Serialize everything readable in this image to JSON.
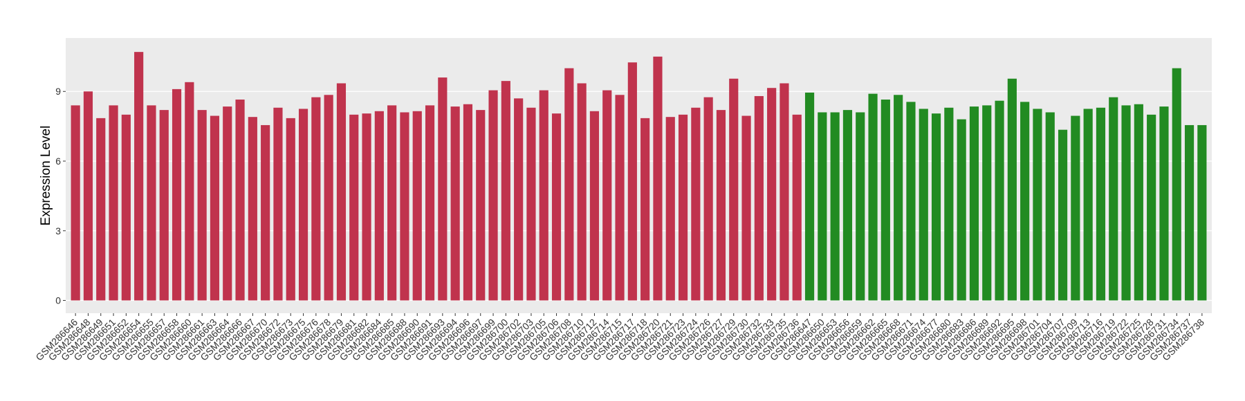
{
  "chart_data": {
    "type": "bar",
    "y_label": "Expression Level",
    "ylim": [
      -0.55,
      11.3
    ],
    "yticks": [
      0,
      3,
      6,
      9
    ],
    "grid": true,
    "series": [
      {
        "color": "#c0334d",
        "categories": [
          "GSM286646",
          "GSM286648",
          "GSM286649",
          "GSM286651",
          "GSM286652",
          "GSM286654",
          "GSM286655",
          "GSM286657",
          "GSM286658",
          "GSM286660",
          "GSM286661",
          "GSM286663",
          "GSM286664",
          "GSM286666",
          "GSM286667",
          "GSM286670",
          "GSM286672",
          "GSM286673",
          "GSM286675",
          "GSM286676",
          "GSM286678",
          "GSM286679",
          "GSM286681",
          "GSM286682",
          "GSM286684",
          "GSM286685",
          "GSM286688",
          "GSM286690",
          "GSM286691",
          "GSM286693",
          "GSM286694",
          "GSM286696",
          "GSM286697",
          "GSM286699",
          "GSM286700",
          "GSM286702",
          "GSM286703",
          "GSM286705",
          "GSM286706",
          "GSM286708",
          "GSM286710",
          "GSM286712",
          "GSM286714",
          "GSM286715",
          "GSM286717",
          "GSM286718",
          "GSM286720",
          "GSM286721",
          "GSM286723",
          "GSM286724",
          "GSM286726",
          "GSM286727",
          "GSM286729",
          "GSM286730",
          "GSM286732",
          "GSM286733",
          "GSM286735",
          "GSM286736"
        ],
        "values": [
          8.4,
          9.0,
          7.85,
          8.4,
          8.0,
          10.7,
          8.4,
          8.2,
          9.1,
          9.4,
          8.2,
          7.95,
          8.35,
          8.65,
          7.9,
          7.55,
          8.3,
          7.85,
          8.25,
          8.75,
          8.85,
          9.35,
          8.0,
          8.05,
          8.15,
          8.4,
          8.1,
          8.15,
          8.4,
          9.6,
          8.35,
          8.45,
          8.2,
          9.05,
          9.45,
          8.7,
          8.3,
          9.05,
          8.05,
          10.0,
          9.35,
          8.15,
          9.05,
          8.85,
          10.25,
          7.85,
          10.5,
          7.9,
          8.0,
          8.3,
          8.75,
          8.2,
          9.55,
          7.95,
          8.8,
          9.15,
          9.35,
          8.0
        ]
      },
      {
        "color": "#228b22",
        "categories": [
          "GSM286647",
          "GSM286650",
          "GSM286653",
          "GSM286656",
          "GSM286659",
          "GSM286662",
          "GSM286665",
          "GSM286668",
          "GSM286671",
          "GSM286674",
          "GSM286677",
          "GSM286680",
          "GSM286683",
          "GSM286686",
          "GSM286689",
          "GSM286692",
          "GSM286695",
          "GSM286698",
          "GSM286701",
          "GSM286704",
          "GSM286707",
          "GSM286709",
          "GSM286713",
          "GSM286716",
          "GSM286719",
          "GSM286722",
          "GSM286725",
          "GSM286728",
          "GSM286731",
          "GSM286734",
          "GSM286737",
          "GSM286738"
        ],
        "values": [
          8.95,
          8.1,
          8.1,
          8.2,
          8.1,
          8.9,
          8.65,
          8.85,
          8.55,
          8.25,
          8.05,
          8.3,
          7.8,
          8.35,
          8.4,
          8.6,
          9.55,
          8.55,
          8.25,
          8.1,
          7.35,
          7.95,
          8.25,
          8.3,
          8.75,
          8.4,
          8.45,
          8.0,
          8.35,
          10.0,
          7.55,
          7.55
        ]
      }
    ]
  }
}
